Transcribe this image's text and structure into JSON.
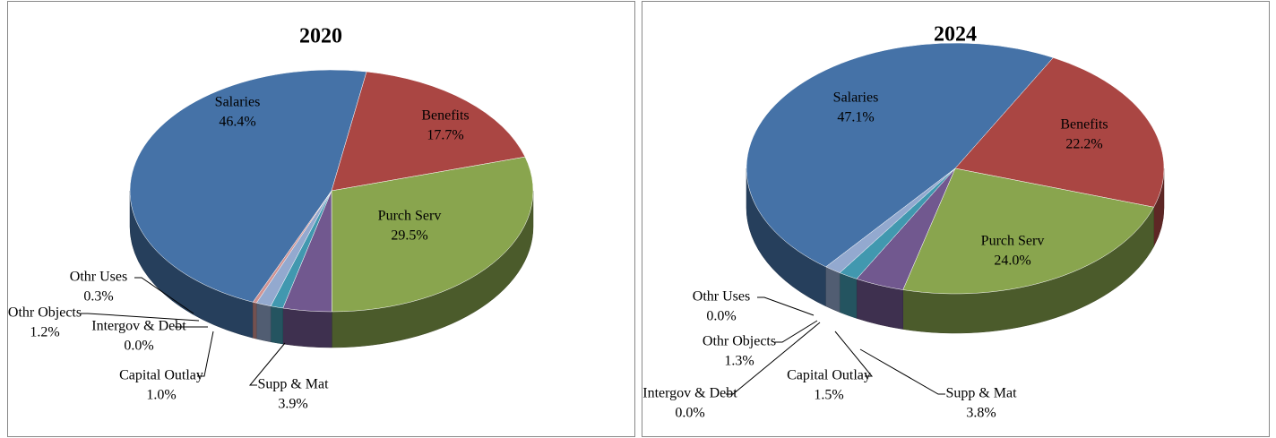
{
  "chart_data": [
    {
      "type": "pie3d",
      "title": "2020",
      "categories": [
        "Salaries",
        "Benefits",
        "Purch Serv",
        "Supp & Mat",
        "Capital Outlay",
        "Intergov & Debt",
        "Othr Objects",
        "Othr Uses"
      ],
      "values": [
        46.4,
        17.7,
        29.5,
        3.9,
        1.0,
        0.0,
        1.2,
        0.3
      ],
      "value_labels": [
        "46.4%",
        "17.7%",
        "29.5%",
        "3.9%",
        "1.0%",
        "0.0%",
        "1.2%",
        "0.3%"
      ],
      "colors": [
        "#4572a7",
        "#aa4643",
        "#89a54e",
        "#71588f",
        "#4198af",
        "#db843d",
        "#93a9cf",
        "#d19392"
      ]
    },
    {
      "type": "pie3d",
      "title": "2024",
      "categories": [
        "Salaries",
        "Benefits",
        "Purch Serv",
        "Supp & Mat",
        "Capital Outlay",
        "Intergov & Debt",
        "Othr Objects",
        "Othr Uses"
      ],
      "values": [
        47.1,
        22.2,
        24.0,
        3.8,
        1.5,
        0.0,
        1.3,
        0.0
      ],
      "value_labels": [
        "47.1%",
        "22.2%",
        "24.0%",
        "3.8%",
        "1.5%",
        "0.0%",
        "1.3%",
        "0.0%"
      ],
      "colors": [
        "#4572a7",
        "#aa4643",
        "#89a54e",
        "#71588f",
        "#4198af",
        "#db843d",
        "#93a9cf",
        "#d19392"
      ]
    }
  ]
}
